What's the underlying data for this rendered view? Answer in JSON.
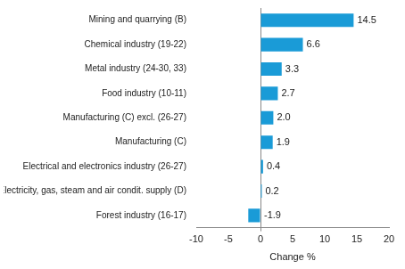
{
  "chart_data": {
    "type": "bar",
    "orientation": "horizontal",
    "x_label": "Change %",
    "categories": [
      "Mining and quarrying (B)",
      "Chemical industry (19-22)",
      "Metal industry (24-30, 33)",
      "Food industry (10-11)",
      "Manufacturing (C) excl. (26-27)",
      "Manufacturing (C)",
      "Electrical and electronics industry (26-27)",
      "Electricity, gas, steam and air condit. supply (D)",
      "Forest industry (16-17)"
    ],
    "values": [
      14.5,
      6.6,
      3.3,
      2.7,
      2.0,
      1.9,
      0.4,
      0.2,
      -1.9
    ],
    "value_labels": [
      "14.5",
      "6.6",
      "3.3",
      "2.7",
      "2.0",
      "1.9",
      "0.4",
      "0.2",
      "-1.9"
    ],
    "color": "#1a9bd7",
    "xlim": [
      -10,
      20
    ],
    "xticks": [
      -10,
      -5,
      0,
      5,
      10,
      15,
      20
    ],
    "grid": false,
    "data_labels": true
  }
}
